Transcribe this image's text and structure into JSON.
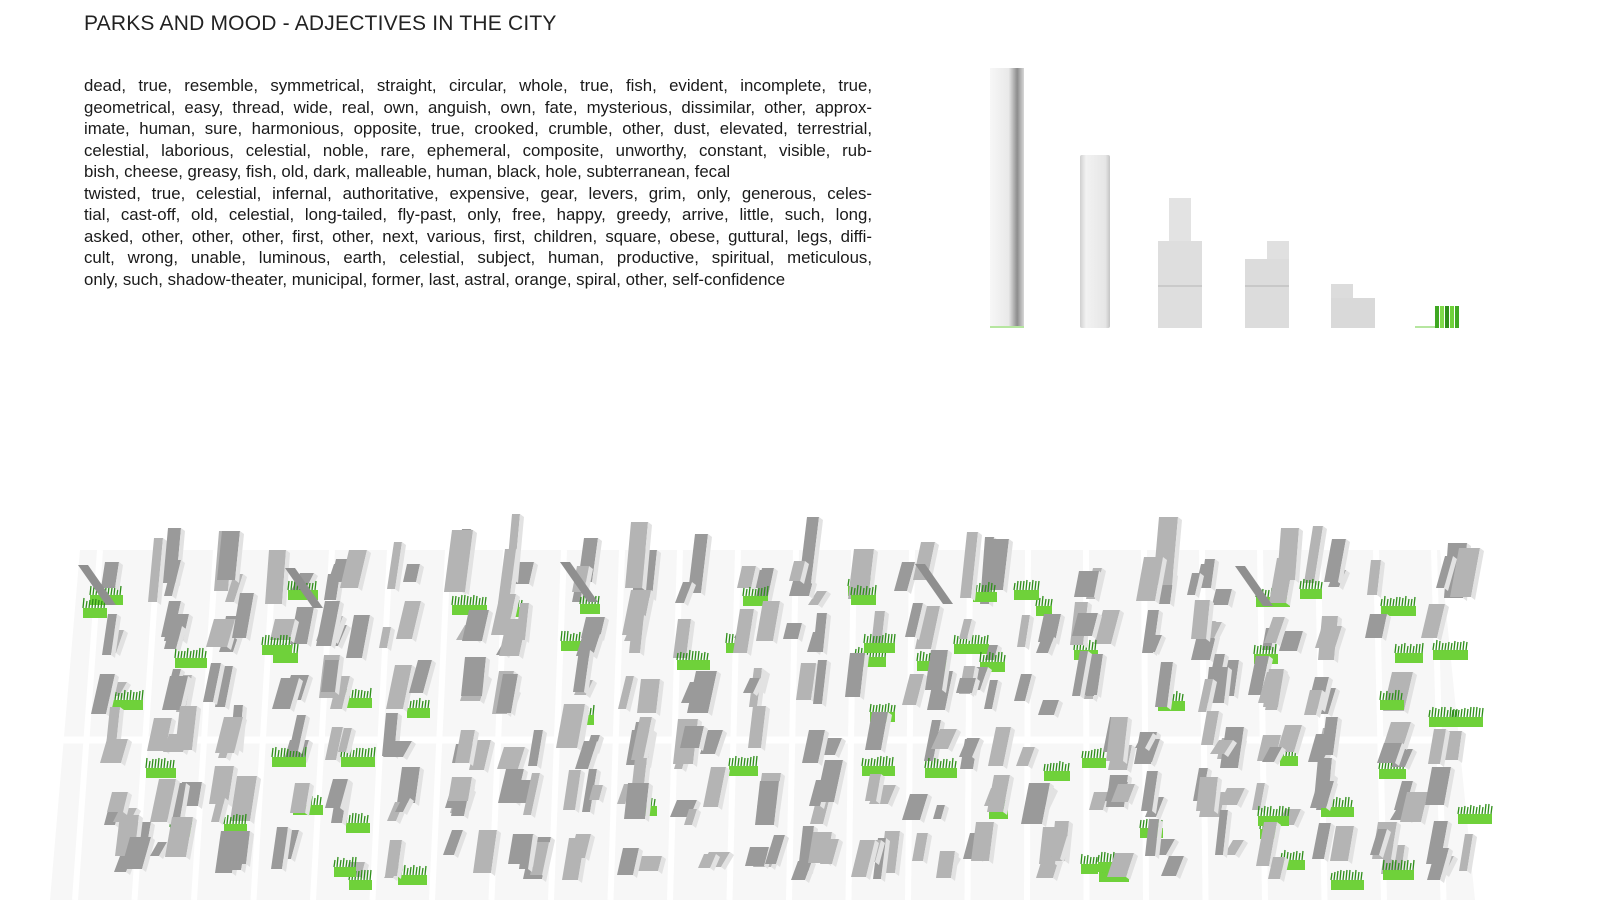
{
  "title": "PARKS AND MOOD - ADJECTIVES IN THE CITY",
  "body_lines": [
    "dead, true, resemble, symmetrical, straight, circular, whole, true, fish, evident, incomplete, true,",
    "geometrical, easy, thread, wide, real, own, anguish, own, fate, mysterious, dissimilar, other, approx-",
    "imate, human, sure, harmonious, opposite, true, crooked, crumble, other, dust, elevated, terrestrial,",
    "celestial, laborious, celestial, noble, rare, ephemeral, composite, unworthy, constant, visible, rub-",
    "bish, cheese, greasy, fish, old, dark, malleable, human, black, hole, subterranean, fecal",
    "twisted, true, celestial, infernal, authoritative, expensive, gear, levers, grim, only, generous, celes-",
    "tial, cast-off, old, celestial, long-tailed, fly-past, only, free, happy, greedy, arrive, little, such, long,",
    "asked, other, other, other, first, other, next, various, first, children, square, obese, guttural, legs, diffi-",
    "cult, wrong, unable, luminous, earth, celestial, subject, human, productive, spiritual, meticulous,",
    "only, such, shadow-theater, municipal, former, last, astral, orange, spiral, other, self-confidence"
  ],
  "colors": {
    "building_light": "#e2e2e2",
    "building_shadow": "#9a9a9a",
    "building_top": "#f4f4f4",
    "park_green": "#6fd13a",
    "park_dark": "#2f8f1a"
  }
}
